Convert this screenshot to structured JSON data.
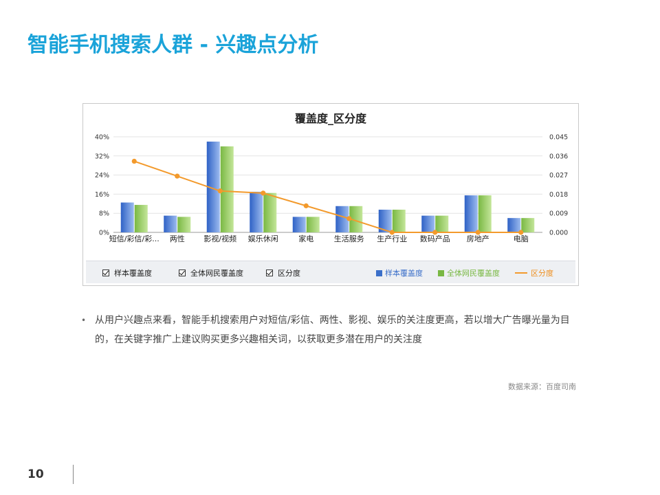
{
  "page": {
    "title": "智能手机搜索人群 - 兴趣点分析",
    "bullet": "从用户兴趣点来看，智能手机搜索用户对短信/彩信、两性、影视、娱乐的关注度更高，若以增大广告曝光量为目的，在关键字推广上建议购买更多兴趣相关词，以获取更多潜在用户的关注度",
    "source": "数据来源：百度司南",
    "page_number": "10"
  },
  "colors": {
    "title": "#1aa3d9",
    "sample_bar": "#4a7fd4",
    "all_bar": "#92cc5c",
    "line": "#f39a2c"
  },
  "chart_data": {
    "type": "bar",
    "title": "覆盖度_区分度",
    "categories": [
      "短信/彩信/彩...",
      "两性",
      "影视/视频",
      "娱乐休闲",
      "家电",
      "生活服务",
      "生产行业",
      "数码产品",
      "房地产",
      "电脑"
    ],
    "series": [
      {
        "name": "样本覆盖度",
        "type": "bar",
        "axis": "left",
        "values": [
          12.5,
          7,
          38,
          17,
          6.5,
          11,
          9.5,
          7,
          15.5,
          6
        ]
      },
      {
        "name": "全体网民覆盖度",
        "type": "bar",
        "axis": "left",
        "values": [
          11.5,
          6.5,
          36,
          16.5,
          6.5,
          11,
          9.5,
          7,
          15.5,
          6
        ]
      },
      {
        "name": "区分度",
        "type": "line",
        "axis": "right",
        "values": [
          0.0335,
          0.0265,
          0.0195,
          0.0185,
          0.0125,
          0.0065,
          0,
          0,
          0,
          0
        ]
      }
    ],
    "y_left": {
      "min": 0,
      "max": 40,
      "ticks": [
        "0%",
        "8%",
        "16%",
        "24%",
        "32%",
        "40%"
      ]
    },
    "y_right": {
      "min": 0,
      "max": 0.045,
      "ticks": [
        "0.000",
        "0.009",
        "0.018",
        "0.027",
        "0.036",
        "0.045"
      ]
    },
    "grid": true,
    "legend_placement": "bottom",
    "legend_checks": [
      "样本覆盖度",
      "全体网民覆盖度",
      "区分度"
    ]
  }
}
